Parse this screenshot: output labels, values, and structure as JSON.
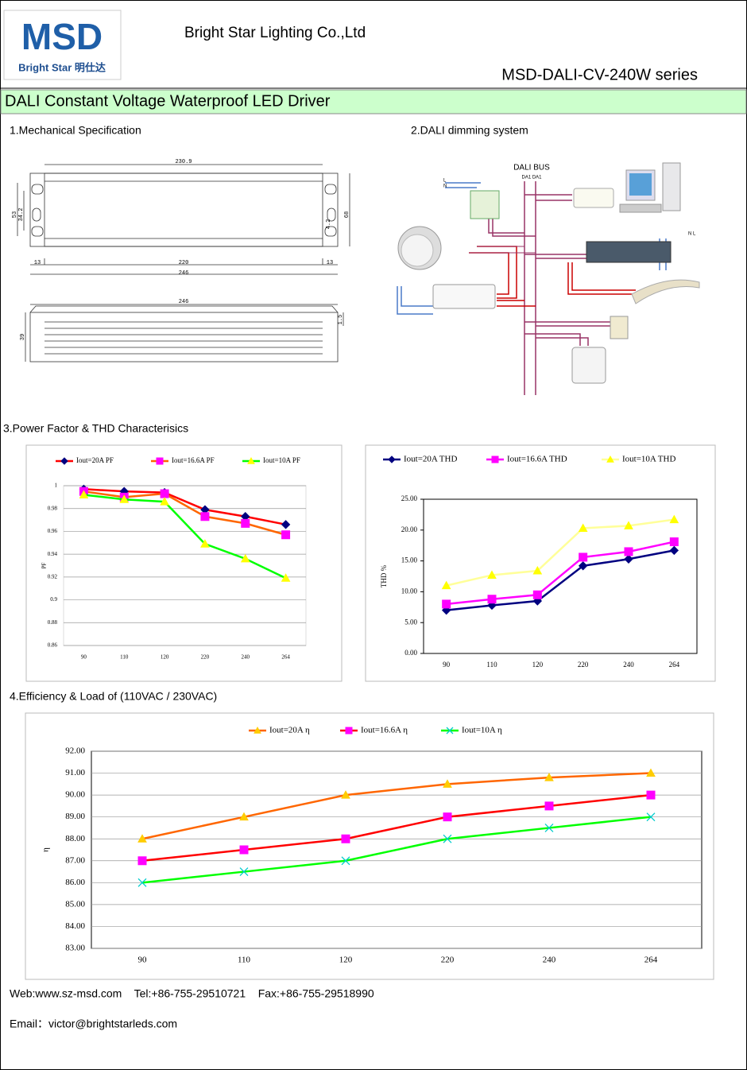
{
  "header": {
    "logo": "MSD",
    "logo_sub": "Bright Star 明仕达",
    "company": "Bright Star Lighting Co.,Ltd",
    "series": "MSD-DALI-CV-240W series"
  },
  "title": "DALI Constant Voltage Waterproof LED Driver",
  "sections": [
    "1.Mechanical Specification",
    "2.DALI dimming system",
    "3.Power Factor & THD Characterisics",
    "4.Efficiency & Load of (110VAC / 230VAC)"
  ],
  "mechanical": {
    "top_length": "230.9",
    "height_outer": "53",
    "height_inner": "34.2",
    "width": "68",
    "hole": "4.2",
    "left_margin": "13",
    "hole_pitch": "220",
    "right_margin": "13",
    "total_length": "246",
    "side_length": "246",
    "side_height": "39",
    "side_lip": "1.5"
  },
  "dali": {
    "bus": "DALI BUS",
    "terminals": "DA1 DA1",
    "l": "L",
    "n": "N",
    "nl": "N  L"
  },
  "chart_data": [
    {
      "type": "line",
      "categories": [
        "90",
        "110",
        "120",
        "220",
        "240",
        "264"
      ],
      "ylabel": "PF",
      "ylim": [
        0.86,
        1
      ],
      "yticks": [
        0.86,
        0.88,
        0.9,
        0.92,
        0.94,
        0.96,
        0.98,
        1
      ],
      "grid": true,
      "series": [
        {
          "name": "Iout=20A PF",
          "color": "#ff0000",
          "marker_color": "#000080",
          "marker": "diamond",
          "values": [
            0.997,
            0.995,
            0.994,
            0.979,
            0.973,
            0.966
          ]
        },
        {
          "name": "Iout=16.6A PF",
          "color": "#ff6600",
          "marker_color": "#ff00ff",
          "marker": "square",
          "values": [
            0.995,
            0.99,
            0.993,
            0.973,
            0.967,
            0.957
          ]
        },
        {
          "name": "Iout=10A PF",
          "color": "#00ff00",
          "marker_color": "#ffff00",
          "marker": "triangle",
          "values": [
            0.992,
            0.988,
            0.986,
            0.949,
            0.936,
            0.919
          ]
        }
      ]
    },
    {
      "type": "line",
      "categories": [
        "90",
        "110",
        "120",
        "220",
        "240",
        "264"
      ],
      "ylabel": "THD %",
      "ylim": [
        0,
        25
      ],
      "yticks": [
        {
          "value": 0,
          "label": "0.00"
        },
        {
          "value": 5,
          "label": "5.00"
        },
        {
          "value": 10,
          "label": "10.00"
        },
        {
          "value": 15,
          "label": "15.00"
        },
        {
          "value": 20,
          "label": "20.00"
        },
        {
          "value": 25,
          "label": "25.00"
        }
      ],
      "grid": false,
      "series": [
        {
          "name": "Iout=20A THD",
          "color": "#000080",
          "marker_color": "#000080",
          "marker": "diamond",
          "values": [
            7.0,
            7.8,
            8.5,
            14.2,
            15.3,
            16.7
          ]
        },
        {
          "name": "Iout=16.6A THD",
          "color": "#ff00ff",
          "marker_color": "#ff00ff",
          "marker": "square",
          "values": [
            8.0,
            8.8,
            9.5,
            15.6,
            16.5,
            18.1
          ]
        },
        {
          "name": "Iout=10A THD",
          "color": "#ffff99",
          "marker_color": "#ffff00",
          "marker": "triangle",
          "values": [
            11.0,
            12.7,
            13.4,
            20.3,
            20.7,
            21.7
          ]
        }
      ]
    },
    {
      "type": "line",
      "categories": [
        "90",
        "110",
        "120",
        "220",
        "240",
        "264"
      ],
      "ylabel": "η",
      "ylim": [
        83,
        92
      ],
      "yticks": [
        {
          "value": 83,
          "label": "83.00"
        },
        {
          "value": 84,
          "label": "84.00"
        },
        {
          "value": 85,
          "label": "85.00"
        },
        {
          "value": 86,
          "label": "86.00"
        },
        {
          "value": 87,
          "label": "87.00"
        },
        {
          "value": 88,
          "label": "88.00"
        },
        {
          "value": 89,
          "label": "89.00"
        },
        {
          "value": 90,
          "label": "90.00"
        },
        {
          "value": 91,
          "label": "91.00"
        },
        {
          "value": 92,
          "label": "92.00"
        }
      ],
      "grid": true,
      "series": [
        {
          "name": "Iout=20A η",
          "color": "#ff6600",
          "marker_color": "#ffcc00",
          "marker": "triangle",
          "values": [
            88,
            89,
            90,
            90.5,
            90.8,
            91
          ]
        },
        {
          "name": "Iout=16.6A η",
          "color": "#ff0000",
          "marker_color": "#ff00ff",
          "marker": "square",
          "values": [
            87,
            87.5,
            88,
            89,
            89.5,
            90
          ]
        },
        {
          "name": "Iout=10A η",
          "color": "#00ff00",
          "marker_color": "#00cccc",
          "marker": "x",
          "values": [
            86,
            86.5,
            87,
            88,
            88.5,
            89
          ]
        }
      ]
    }
  ],
  "footer": {
    "contact": "Web:www.sz-msd.com    Tel:+86-755-29510721    Fax:+86-755-29518990",
    "email": "Email：victor@brightstarleds.com"
  }
}
